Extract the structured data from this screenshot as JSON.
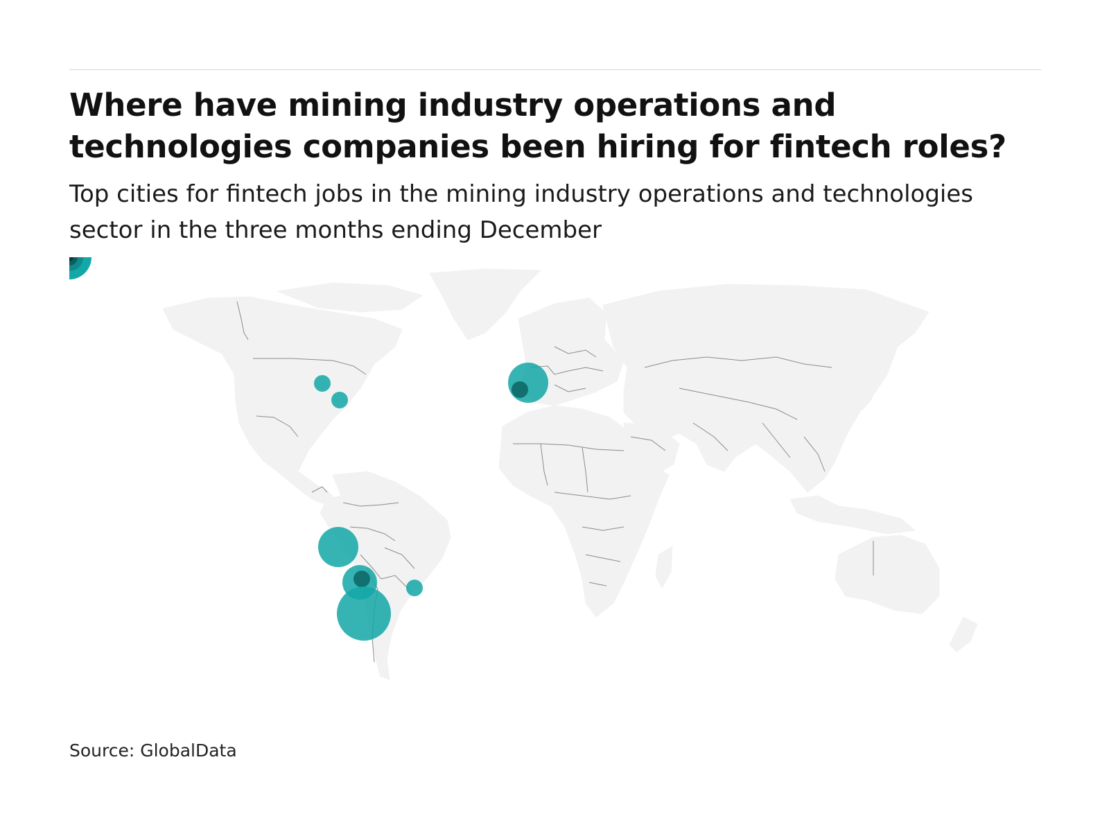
{
  "header": {
    "title": "Where have mining industry operations and technologies companies been hiring for fintech roles?",
    "subtitle": "Top cities for fintech jobs in the mining industry operations and technologies sector in the three months ending December"
  },
  "footer": {
    "source": "Source: GlobalData"
  },
  "colors": {
    "bubble": "#13a7a7",
    "bubble_overlap": "#0b5f5f",
    "land": "#f2f2f2",
    "border": "#8a8a8a",
    "rule": "#d6d6d6"
  },
  "icons": {
    "legend": "bubble-size-legend-icon"
  }
}
